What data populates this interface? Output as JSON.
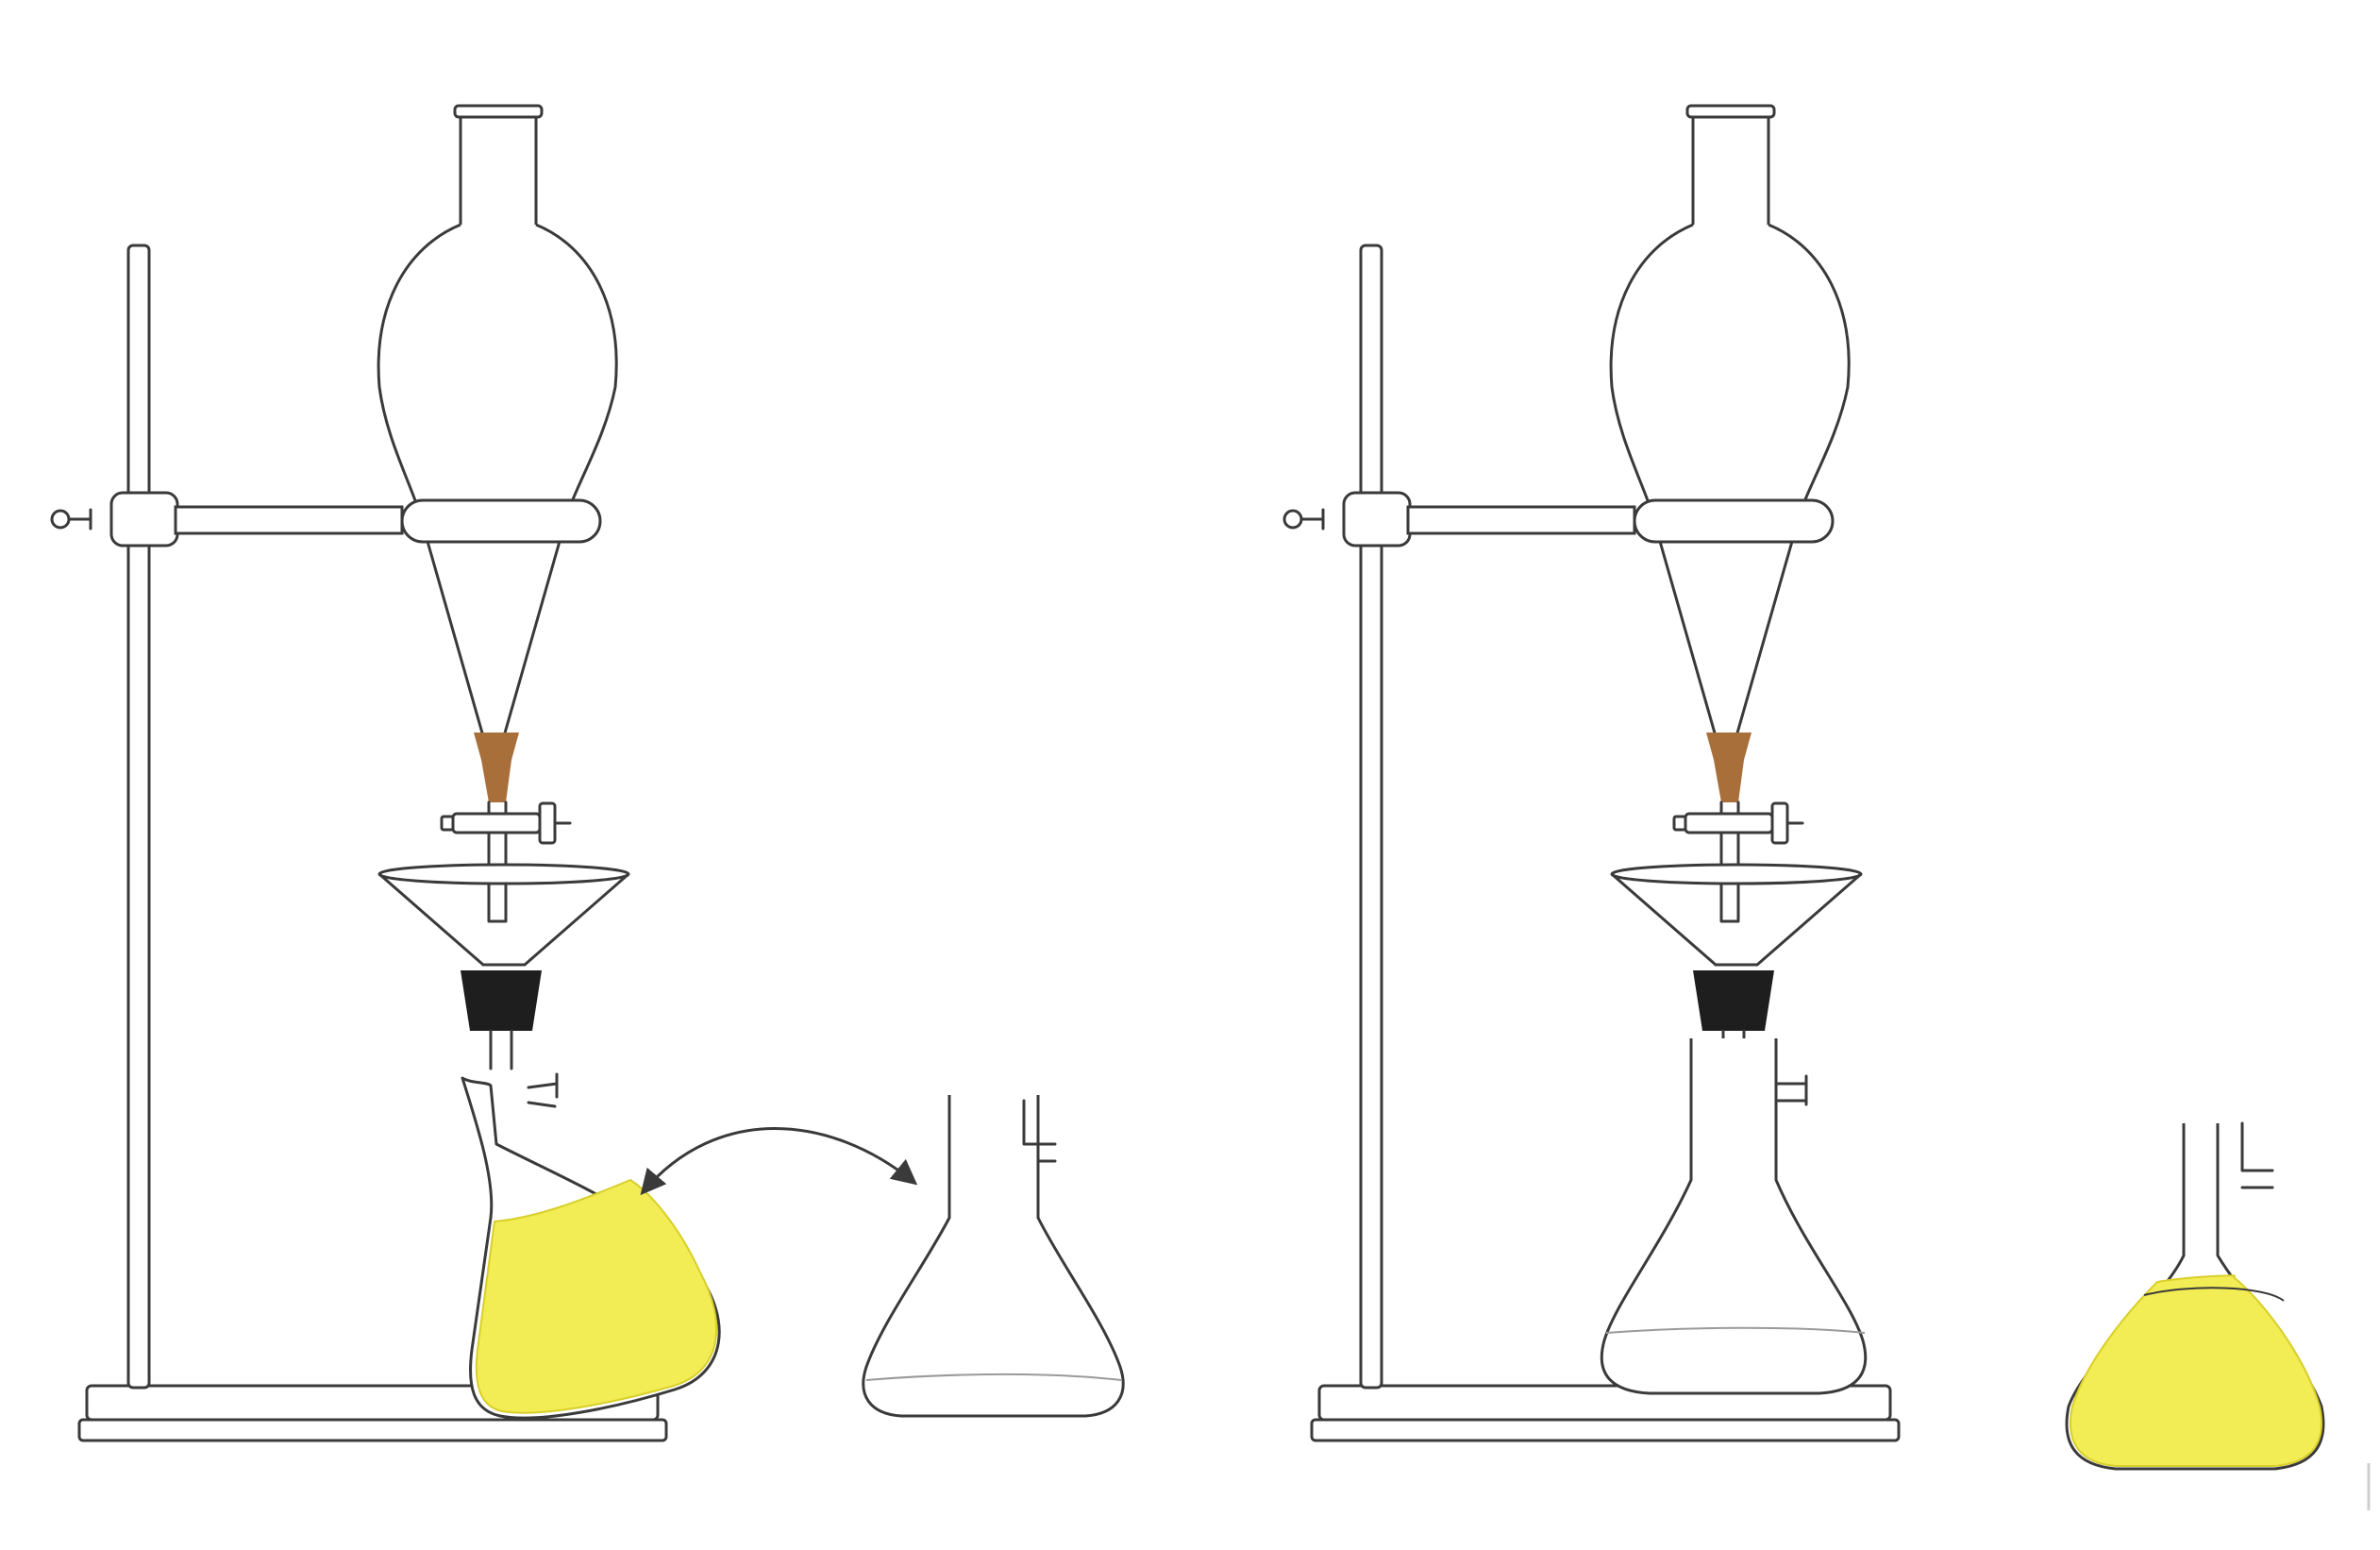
{
  "colors": {
    "outline": "#3a3a3a",
    "background": "#ffffff",
    "yellow_liquid": "#f2ec55",
    "yellow_edge": "#d8cf2a",
    "brown_layer": "#a86f3a",
    "stopper": "#1e1e1e",
    "clear_liquid_line": "#9a9a9a"
  },
  "scenes": [
    {
      "name": "left",
      "receiver": "yellow-tilted",
      "spare": "clear",
      "swap": "double-arrow"
    },
    {
      "name": "right",
      "receiver": "clear",
      "spare": "yellow"
    }
  ]
}
